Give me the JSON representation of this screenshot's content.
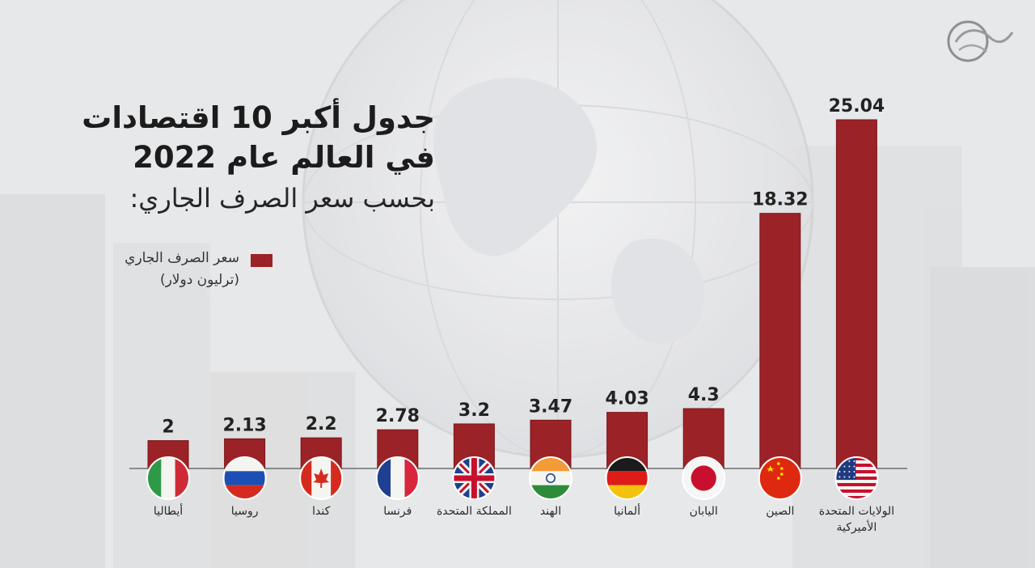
{
  "header": {
    "title_line1": "جدول أكبر 10 اقتصادات",
    "title_line2": "في العالم عام 2022",
    "subtitle": "بحسب سعر الصرف الجاري:"
  },
  "legend": {
    "label": "سعر الصرف الجاري",
    "unit": "(ترليون دولار)",
    "color": "#9b2226"
  },
  "colors": {
    "bar": "#9b2226",
    "bar_edge": "#7a171b",
    "baseline": "#6d6d6d"
  },
  "chart_data": {
    "type": "bar",
    "title": "جدول أكبر 10 اقتصادات في العالم عام 2022",
    "subtitle": "بحسب سعر الصرف الجاري:",
    "ylabel": "",
    "xlabel": "",
    "legend_position": "left",
    "grid": false,
    "ylim": [
      0,
      26
    ],
    "categories": [
      {
        "label": "أيطاليا",
        "flag": "italy-flag"
      },
      {
        "label": "روسيا",
        "flag": "russia-flag"
      },
      {
        "label": "كندا",
        "flag": "canada-flag"
      },
      {
        "label": "فرنسا",
        "flag": "france-flag"
      },
      {
        "label": "المملكة المتحدة",
        "flag": "uk-flag"
      },
      {
        "label": "الهند",
        "flag": "india-flag"
      },
      {
        "label": "ألمانيا",
        "flag": "germany-flag"
      },
      {
        "label": "اليابان",
        "flag": "japan-flag"
      },
      {
        "label": "الصين",
        "flag": "china-flag"
      },
      {
        "label": "الولايات المتحدة\nالأميركية",
        "flag": "usa-flag"
      }
    ],
    "series": [
      {
        "name": "سعر الصرف الجاري",
        "values": [
          2,
          2.13,
          2.2,
          2.78,
          3.2,
          3.47,
          4.03,
          4.3,
          18.32,
          25.04
        ],
        "value_labels": [
          "2",
          "2.13",
          "2.2",
          "2.78",
          "3.2",
          "3.47",
          "4.03",
          "4.3",
          "18.32",
          "25.04"
        ]
      }
    ]
  }
}
